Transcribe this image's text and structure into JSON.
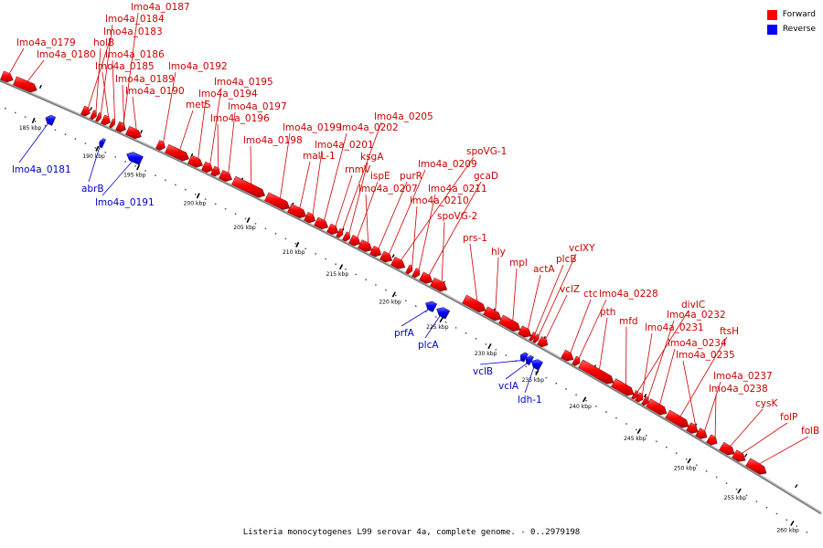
{
  "legend": {
    "forward_label": "Forward",
    "reverse_label": "Reverse",
    "forward_color": "#ff0000",
    "reverse_color": "#0000ff"
  },
  "colors": {
    "label_forward": "#cc0000",
    "label_reverse": "#0000cc",
    "backbone": "#808080"
  },
  "caption": "Listeria monocytogenes L99 serovar 4a, complete genome. - 0..2979198",
  "scale_ticks": [
    "185 kbp",
    "190 kbp",
    "195 kbp",
    "200 kbp",
    "205 kbp",
    "210 kbp",
    "215 kbp",
    "220 kbp",
    "225 kbp",
    "230 kbp",
    "235 kbp",
    "240 kbp",
    "245 kbp",
    "250 kbp",
    "255 kbp",
    "260 kbp"
  ],
  "genes": [
    {
      "name": "lmo4a_0179",
      "strand": "forward"
    },
    {
      "name": "lmo4a_0180",
      "strand": "forward"
    },
    {
      "name": "lmo4a_0181",
      "strand": "reverse"
    },
    {
      "name": "lmo4a_0183",
      "strand": "forward"
    },
    {
      "name": "holB",
      "strand": "forward"
    },
    {
      "name": "lmo4a_0184",
      "strand": "forward"
    },
    {
      "name": "lmo4a_0185",
      "strand": "forward"
    },
    {
      "name": "lmo4a_0186",
      "strand": "forward"
    },
    {
      "name": "lmo4a_0187",
      "strand": "forward"
    },
    {
      "name": "abrB",
      "strand": "reverse"
    },
    {
      "name": "lmo4a_0189",
      "strand": "forward"
    },
    {
      "name": "lmo4a_0190",
      "strand": "forward"
    },
    {
      "name": "lmo4a_0191",
      "strand": "reverse"
    },
    {
      "name": "lmo4a_0192",
      "strand": "forward"
    },
    {
      "name": "metS",
      "strand": "forward"
    },
    {
      "name": "lmo4a_0194",
      "strand": "forward"
    },
    {
      "name": "lmo4a_0195",
      "strand": "forward"
    },
    {
      "name": "lmo4a_0196",
      "strand": "forward"
    },
    {
      "name": "lmo4a_0197",
      "strand": "forward"
    },
    {
      "name": "lmo4a_0198",
      "strand": "forward"
    },
    {
      "name": "lmo4a_0199",
      "strand": "forward"
    },
    {
      "name": "malL-1",
      "strand": "forward"
    },
    {
      "name": "lmo4a_0201",
      "strand": "forward"
    },
    {
      "name": "lmo4a_0202",
      "strand": "forward"
    },
    {
      "name": "rnmV",
      "strand": "forward"
    },
    {
      "name": "lmo4a_0205",
      "strand": "forward"
    },
    {
      "name": "ksgA",
      "strand": "forward"
    },
    {
      "name": "ispE",
      "strand": "forward"
    },
    {
      "name": "lmo4a_0207",
      "strand": "forward"
    },
    {
      "name": "purR",
      "strand": "forward"
    },
    {
      "name": "lmo4a_0209",
      "strand": "forward"
    },
    {
      "name": "spoVG-1",
      "strand": "forward"
    },
    {
      "name": "lmo4a_0210",
      "strand": "forward"
    },
    {
      "name": "lmo4a_0211",
      "strand": "forward"
    },
    {
      "name": "gcaD",
      "strand": "forward"
    },
    {
      "name": "spoVG-2",
      "strand": "forward"
    },
    {
      "name": "prs-1",
      "strand": "forward"
    },
    {
      "name": "prfA",
      "strand": "reverse"
    },
    {
      "name": "plcA",
      "strand": "reverse"
    },
    {
      "name": "hly",
      "strand": "forward"
    },
    {
      "name": "mpl",
      "strand": "forward"
    },
    {
      "name": "actA",
      "strand": "forward"
    },
    {
      "name": "plcB",
      "strand": "forward"
    },
    {
      "name": "vclXY",
      "strand": "forward"
    },
    {
      "name": "vclZ",
      "strand": "forward"
    },
    {
      "name": "vclB",
      "strand": "reverse"
    },
    {
      "name": "vclA",
      "strand": "reverse"
    },
    {
      "name": "ldh-1",
      "strand": "reverse"
    },
    {
      "name": "ctc",
      "strand": "forward"
    },
    {
      "name": "lmo4a_0228",
      "strand": "forward"
    },
    {
      "name": "pth",
      "strand": "forward"
    },
    {
      "name": "mfd",
      "strand": "forward"
    },
    {
      "name": "divIC",
      "strand": "forward"
    },
    {
      "name": "lmo4a_0231",
      "strand": "forward"
    },
    {
      "name": "lmo4a_0232",
      "strand": "forward"
    },
    {
      "name": "lmo4a_0234",
      "strand": "forward"
    },
    {
      "name": "ftsH",
      "strand": "forward"
    },
    {
      "name": "lmo4a_0235",
      "strand": "forward"
    },
    {
      "name": "lmo4a_0237",
      "strand": "forward"
    },
    {
      "name": "lmo4a_0238",
      "strand": "forward"
    },
    {
      "name": "cysK",
      "strand": "forward"
    },
    {
      "name": "folP",
      "strand": "forward"
    },
    {
      "name": "folB",
      "strand": "forward"
    }
  ]
}
